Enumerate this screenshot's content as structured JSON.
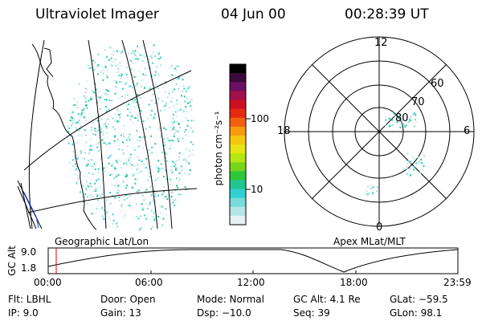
{
  "header": {
    "instrument": "Ultraviolet Imager",
    "date": "04 Jun 00",
    "time": "00:28:39  UT"
  },
  "colorbar": {
    "unit_label": "photon cm⁻²s⁻¹",
    "tick_labels": [
      "100",
      "10"
    ],
    "colors": [
      "#000000",
      "#3a0a3a",
      "#6a1060",
      "#a0104a",
      "#cc1020",
      "#e62a10",
      "#f26010",
      "#f79a10",
      "#f6c610",
      "#e6e612",
      "#b6e614",
      "#76d61a",
      "#2ec83a",
      "#22c690",
      "#30d0d0",
      "#7adada",
      "#b6e6e6",
      "#e6f2f2"
    ]
  },
  "panels": {
    "geographic_label": "Geographic Lat/Lon",
    "apex_label": "Apex MLat/MLT",
    "polar_labels": {
      "top": "12",
      "bottom": "0",
      "left": "18",
      "right": "6",
      "ring_60": "60",
      "ring_70": "70",
      "ring_80": "80"
    }
  },
  "timeline": {
    "axis_title": "GC Alt",
    "y_top": "9.0",
    "y_bottom": "1.8",
    "x_ticks": [
      "00:00",
      "06:00",
      "12:00",
      "18:00",
      "23:59"
    ],
    "marker_color": "#e00000"
  },
  "info": {
    "row1": [
      "Flt:  LBHL",
      "Door: Open",
      "Mode: Normal",
      "GC Alt: 4.1 Re",
      "GLat: −59.5"
    ],
    "row2": [
      "IP:  9.0",
      "Gain: 13",
      "Dsp:   −10.0",
      "Seq: 39",
      "GLon:  98.1"
    ]
  }
}
